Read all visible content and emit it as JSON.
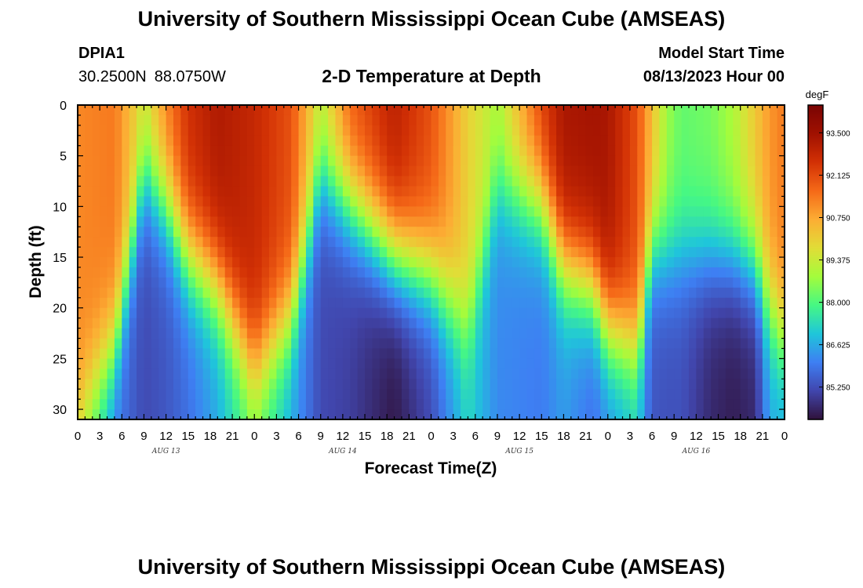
{
  "header": {
    "title": "University of Southern Mississippi Ocean Cube (AMSEAS)",
    "station_id": "DPIA1",
    "latitude": "30.2500N",
    "longitude": "88.0750W",
    "subtitle": "2-D Temperature at Depth",
    "model_start_label": "Model Start Time",
    "model_start_value": "08/13/2023 Hour 00"
  },
  "footer": {
    "title": "University of Southern Mississippi Ocean Cube (AMSEAS)"
  },
  "chart_data": {
    "type": "heatmap",
    "title": "2-D Temperature at Depth",
    "xlabel": "Forecast Time(Z)",
    "ylabel": "Depth (ft)",
    "x_tick_labels": [
      "0",
      "3",
      "6",
      "9",
      "12",
      "15",
      "18",
      "21",
      "0",
      "3",
      "6",
      "9",
      "12",
      "15",
      "18",
      "21",
      "0",
      "3",
      "6",
      "9",
      "12",
      "15",
      "18",
      "21",
      "0",
      "3",
      "6",
      "9",
      "12",
      "15",
      "18",
      "21",
      "0"
    ],
    "x_range_hours": [
      0,
      96
    ],
    "date_labels": [
      {
        "label": "AUG 13",
        "hour": 12
      },
      {
        "label": "AUG 14",
        "hour": 36
      },
      {
        "label": "AUG 15",
        "hour": 60
      },
      {
        "label": "AUG 16",
        "hour": 84
      }
    ],
    "y_tick_labels": [
      "0",
      "5",
      "10",
      "15",
      "20",
      "25",
      "30"
    ],
    "y_ticks": [
      0,
      5,
      10,
      15,
      20,
      25,
      30
    ],
    "y_range_ft": [
      0,
      31
    ],
    "colorbar": {
      "units": "degF",
      "min": 84.2,
      "max": 94.4,
      "tick_labels": [
        "93.500",
        "92.125",
        "90.750",
        "89.375",
        "88.000",
        "86.625",
        "85.250"
      ],
      "ticks": [
        93.5,
        92.125,
        90.75,
        89.375,
        88.0,
        86.625,
        85.25
      ],
      "palette": [
        "#30123b",
        "#4146ad",
        "#3e7ff3",
        "#1fc6da",
        "#46f883",
        "#a4fc3c",
        "#e1dd37",
        "#fcad34",
        "#f56918",
        "#d23105",
        "#a01101",
        "#7a0403"
      ]
    },
    "profile_hours": [
      0,
      5,
      9,
      12,
      15,
      19,
      24,
      29,
      33,
      37,
      43,
      48,
      53,
      57,
      63,
      66,
      70,
      72,
      76,
      78,
      80,
      82,
      86,
      89,
      92,
      94,
      96
    ],
    "surface_temp_degF": [
      91.2,
      91.4,
      89.6,
      91.3,
      92.6,
      93.2,
      92.8,
      92.0,
      89.4,
      91.8,
      93.0,
      92.0,
      90.0,
      89.0,
      92.3,
      93.3,
      93.4,
      93.3,
      92.0,
      90.4,
      88.8,
      88.2,
      88.4,
      89.0,
      90.2,
      91.0,
      91.4
    ],
    "thermocline_depth_ft": [
      30,
      24,
      7,
      10,
      15,
      18,
      26,
      21,
      7,
      10,
      15,
      17,
      22,
      8,
      10,
      16,
      18,
      22,
      24,
      14,
      15,
      15,
      15,
      15,
      16,
      20,
      23
    ],
    "bottom_temp_degF": [
      89.0,
      86.0,
      85.2,
      85.4,
      85.8,
      86.6,
      88.2,
      86.6,
      85.2,
      85.0,
      84.3,
      85.2,
      87.2,
      86.2,
      86.0,
      86.4,
      85.8,
      86.2,
      87.0,
      85.4,
      85.3,
      85.3,
      84.6,
      84.4,
      84.6,
      86.6,
      86.6
    ]
  }
}
